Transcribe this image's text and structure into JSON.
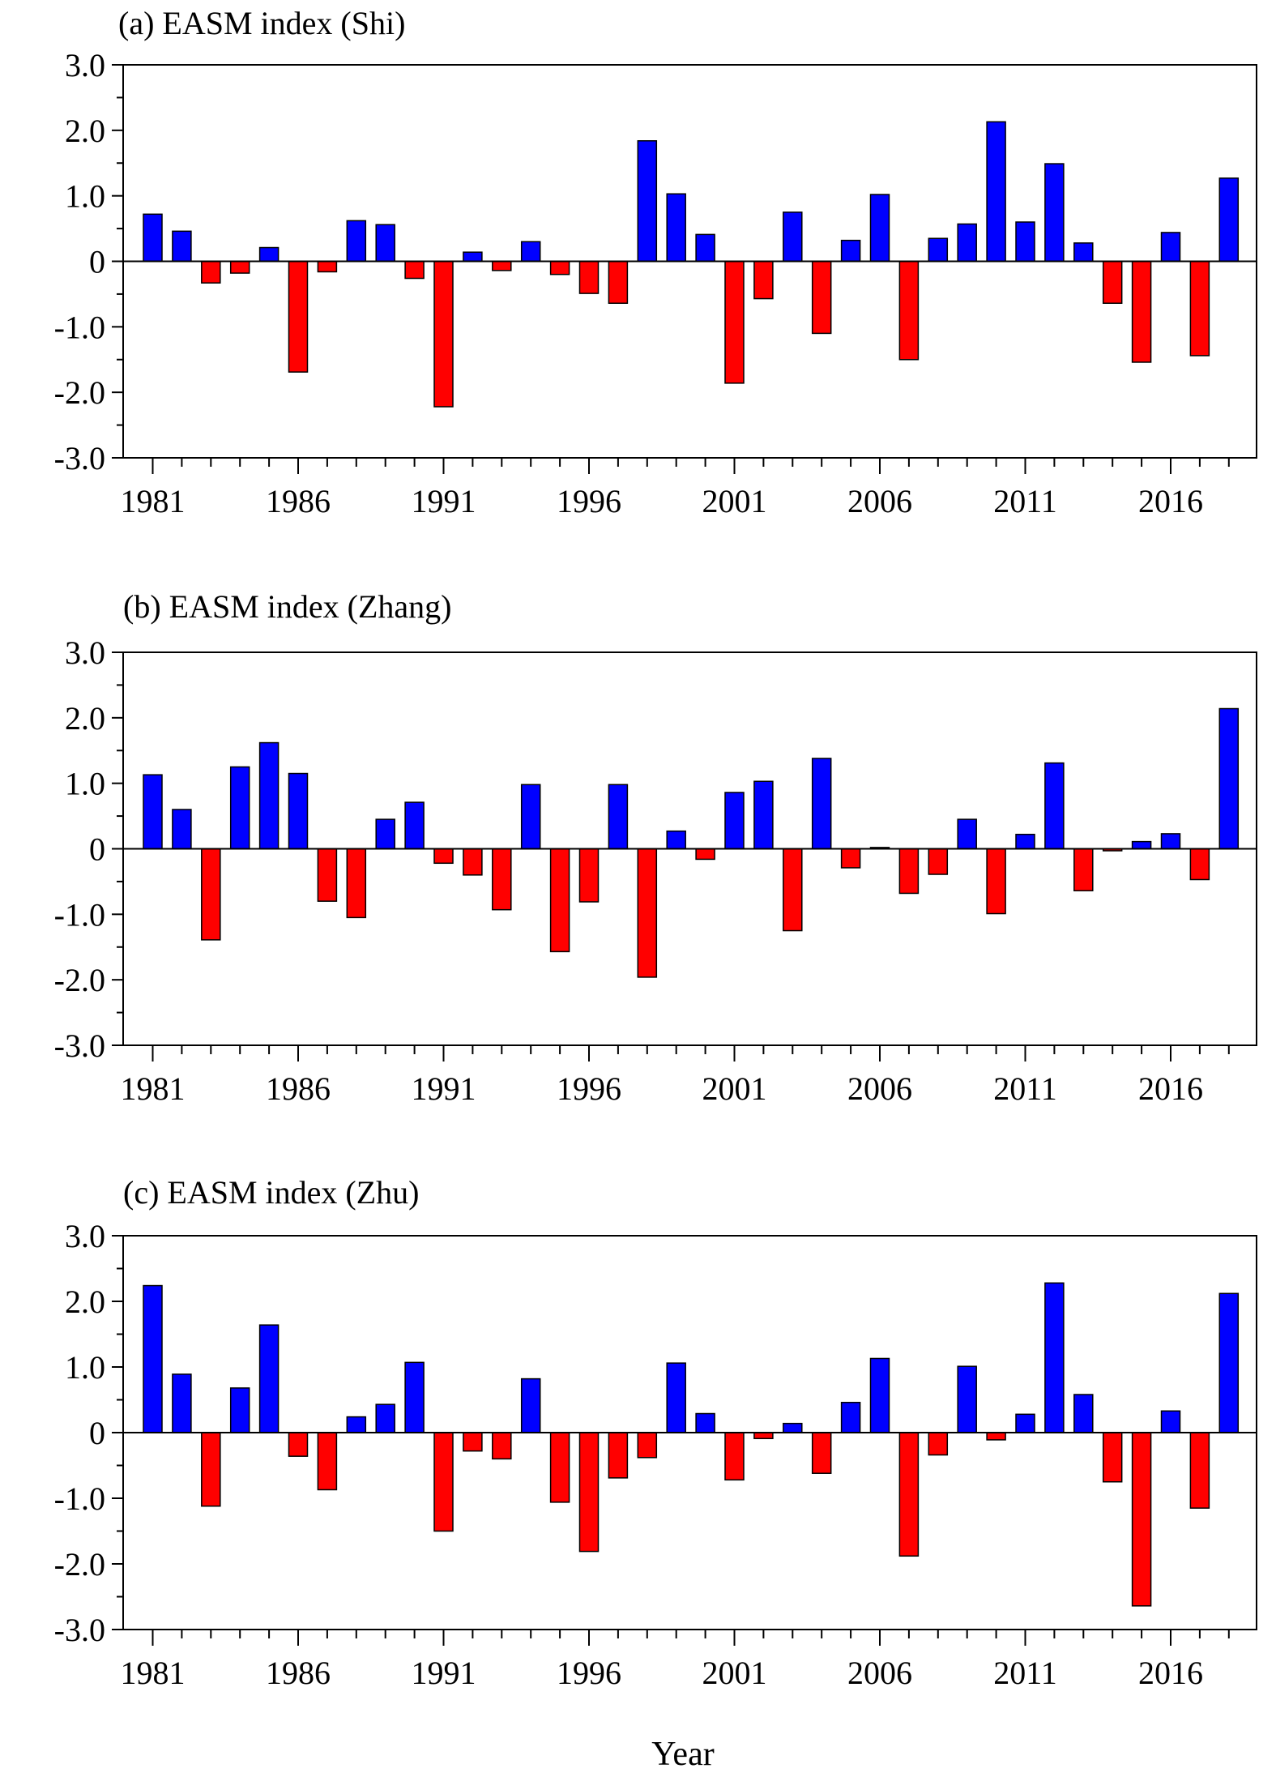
{
  "colors": {
    "positive": "#0000ff",
    "negative": "#ff0000",
    "axis": "#000000"
  },
  "x_axis_label": "Year",
  "chart_data": [
    {
      "type": "bar",
      "title": "(a) EASM index (Shi)",
      "xlabel": "",
      "ylabel": "",
      "ylim": [
        -3.0,
        3.0
      ],
      "yticks": [
        "3.0",
        "2.0",
        "1.0",
        "0",
        "-1.0",
        "-2.0",
        "-3.0"
      ],
      "xticks": [
        "1981",
        "1986",
        "1991",
        "1996",
        "2001",
        "2006",
        "2011",
        "2016"
      ],
      "x": [
        1981,
        1982,
        1983,
        1984,
        1985,
        1986,
        1987,
        1988,
        1989,
        1990,
        1991,
        1992,
        1993,
        1994,
        1995,
        1996,
        1997,
        1998,
        1999,
        2000,
        2001,
        2002,
        2003,
        2004,
        2005,
        2006,
        2007,
        2008,
        2009,
        2010,
        2011,
        2012,
        2013,
        2014,
        2015,
        2016,
        2017,
        2018
      ],
      "values": [
        0.72,
        0.46,
        -0.33,
        -0.18,
        0.21,
        -1.69,
        -0.16,
        0.62,
        0.56,
        -0.26,
        -2.22,
        0.14,
        -0.14,
        0.3,
        -0.2,
        -0.49,
        -0.64,
        1.84,
        1.03,
        0.41,
        -1.86,
        -0.57,
        0.75,
        -1.1,
        0.32,
        1.02,
        -1.5,
        0.35,
        0.57,
        2.13,
        0.6,
        1.49,
        0.28,
        -0.64,
        -1.54,
        0.44,
        -1.44,
        1.27
      ]
    },
    {
      "type": "bar",
      "title": "(b) EASM index (Zhang)",
      "xlabel": "",
      "ylabel": "",
      "ylim": [
        -3.0,
        3.0
      ],
      "yticks": [
        "3.0",
        "2.0",
        "1.0",
        "0",
        "-1.0",
        "-2.0",
        "-3.0"
      ],
      "xticks": [
        "1981",
        "1986",
        "1991",
        "1996",
        "2001",
        "2006",
        "2011",
        "2016"
      ],
      "x": [
        1981,
        1982,
        1983,
        1984,
        1985,
        1986,
        1987,
        1988,
        1989,
        1990,
        1991,
        1992,
        1993,
        1994,
        1995,
        1996,
        1997,
        1998,
        1999,
        2000,
        2001,
        2002,
        2003,
        2004,
        2005,
        2006,
        2007,
        2008,
        2009,
        2010,
        2011,
        2012,
        2013,
        2014,
        2015,
        2016,
        2017,
        2018
      ],
      "values": [
        1.13,
        0.6,
        -1.39,
        1.25,
        1.62,
        1.15,
        -0.8,
        -1.05,
        0.45,
        0.71,
        -0.22,
        -0.4,
        -0.93,
        0.98,
        -1.57,
        -0.81,
        0.98,
        -1.96,
        0.27,
        -0.16,
        0.86,
        1.03,
        -1.25,
        1.38,
        -0.29,
        0.02,
        -0.68,
        -0.39,
        0.45,
        -0.99,
        0.22,
        1.31,
        -0.64,
        -0.03,
        0.11,
        0.23,
        -0.47,
        2.14
      ]
    },
    {
      "type": "bar",
      "title": "(c) EASM index (Zhu)",
      "xlabel": "Year",
      "ylabel": "",
      "ylim": [
        -3.0,
        3.0
      ],
      "yticks": [
        "3.0",
        "2.0",
        "1.0",
        "0",
        "-1.0",
        "-2.0",
        "-3.0"
      ],
      "xticks": [
        "1981",
        "1986",
        "1991",
        "1996",
        "2001",
        "2006",
        "2011",
        "2016"
      ],
      "x": [
        1981,
        1982,
        1983,
        1984,
        1985,
        1986,
        1987,
        1988,
        1989,
        1990,
        1991,
        1992,
        1993,
        1994,
        1995,
        1996,
        1997,
        1998,
        1999,
        2000,
        2001,
        2002,
        2003,
        2004,
        2005,
        2006,
        2007,
        2008,
        2009,
        2010,
        2011,
        2012,
        2013,
        2014,
        2015,
        2016,
        2017,
        2018
      ],
      "values": [
        2.24,
        0.89,
        -1.12,
        0.68,
        1.64,
        -0.36,
        -0.87,
        0.24,
        0.43,
        1.07,
        -1.5,
        -0.28,
        -0.4,
        0.82,
        -1.06,
        -1.81,
        -0.69,
        -0.38,
        1.06,
        0.29,
        -0.72,
        -0.09,
        0.14,
        -0.62,
        0.46,
        1.13,
        -1.88,
        -0.34,
        1.01,
        -0.11,
        0.28,
        2.28,
        0.58,
        -0.75,
        -2.64,
        0.33,
        -1.15,
        2.12
      ]
    }
  ]
}
